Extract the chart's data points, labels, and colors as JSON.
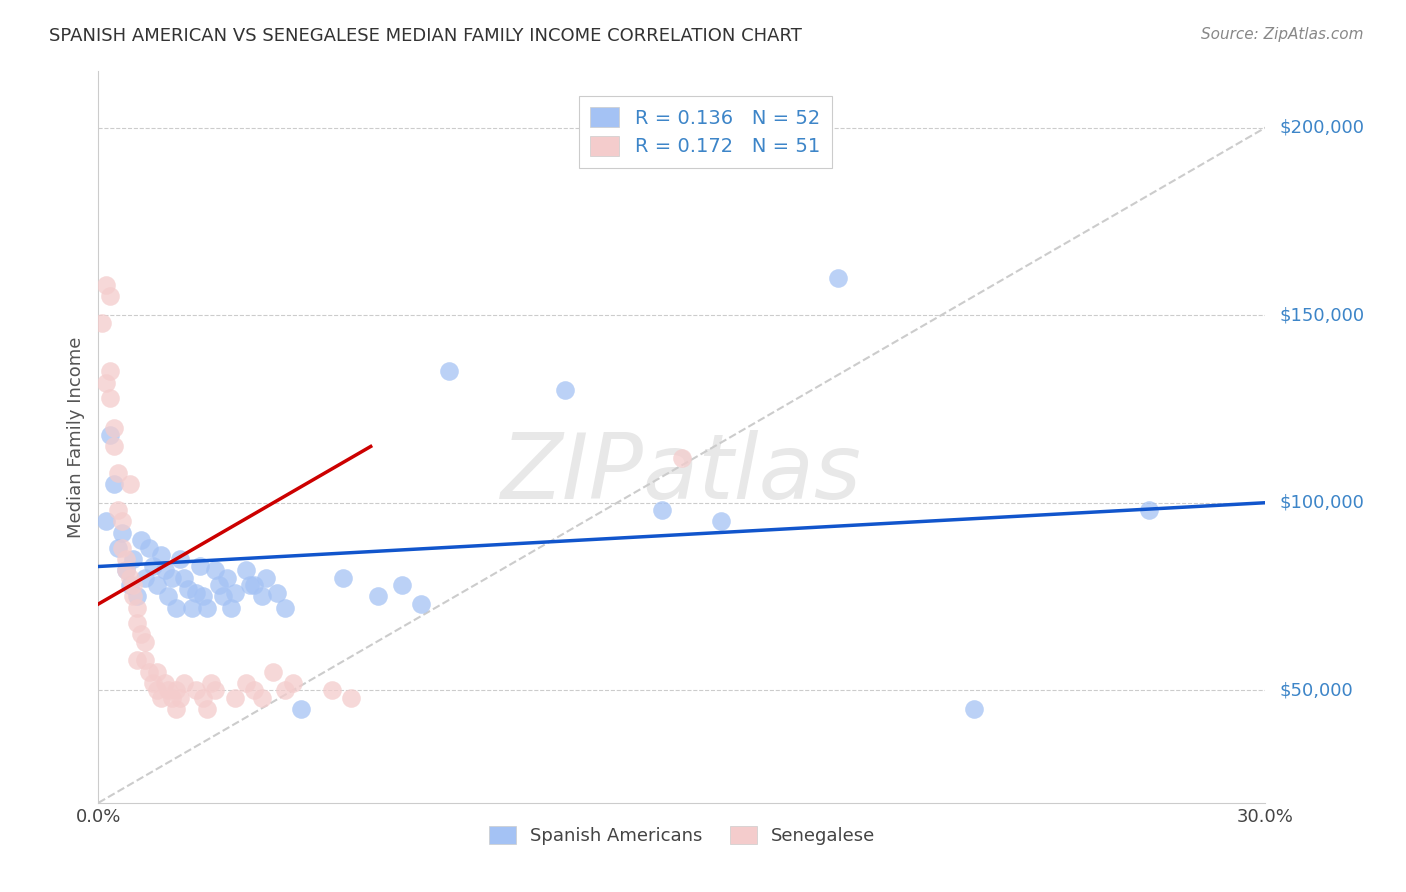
{
  "title": "SPANISH AMERICAN VS SENEGALESE MEDIAN FAMILY INCOME CORRELATION CHART",
  "source": "Source: ZipAtlas.com",
  "ylabel": "Median Family Income",
  "watermark": "ZIPatlas",
  "legend_blue_R": "R = 0.136",
  "legend_blue_N": "N = 52",
  "legend_pink_R": "R = 0.172",
  "legend_pink_N": "N = 51",
  "ytick_labels": [
    "$50,000",
    "$100,000",
    "$150,000",
    "$200,000"
  ],
  "ytick_values": [
    50000,
    100000,
    150000,
    200000
  ],
  "blue_color": "#a4c2f4",
  "pink_color": "#f4cccc",
  "blue_line_color": "#1155cc",
  "pink_line_color": "#cc0000",
  "dashed_line_color": "#cccccc",
  "blue_scatter": [
    [
      0.002,
      95000
    ],
    [
      0.003,
      118000
    ],
    [
      0.004,
      105000
    ],
    [
      0.005,
      88000
    ],
    [
      0.006,
      92000
    ],
    [
      0.007,
      82000
    ],
    [
      0.008,
      78000
    ],
    [
      0.009,
      85000
    ],
    [
      0.01,
      75000
    ],
    [
      0.011,
      90000
    ],
    [
      0.012,
      80000
    ],
    [
      0.013,
      88000
    ],
    [
      0.014,
      83000
    ],
    [
      0.015,
      78000
    ],
    [
      0.016,
      86000
    ],
    [
      0.017,
      82000
    ],
    [
      0.018,
      75000
    ],
    [
      0.019,
      80000
    ],
    [
      0.02,
      72000
    ],
    [
      0.021,
      85000
    ],
    [
      0.022,
      80000
    ],
    [
      0.023,
      77000
    ],
    [
      0.024,
      72000
    ],
    [
      0.025,
      76000
    ],
    [
      0.026,
      83000
    ],
    [
      0.027,
      75000
    ],
    [
      0.028,
      72000
    ],
    [
      0.03,
      82000
    ],
    [
      0.031,
      78000
    ],
    [
      0.032,
      75000
    ],
    [
      0.033,
      80000
    ],
    [
      0.034,
      72000
    ],
    [
      0.035,
      76000
    ],
    [
      0.038,
      82000
    ],
    [
      0.039,
      78000
    ],
    [
      0.04,
      78000
    ],
    [
      0.042,
      75000
    ],
    [
      0.043,
      80000
    ],
    [
      0.046,
      76000
    ],
    [
      0.048,
      72000
    ],
    [
      0.052,
      45000
    ],
    [
      0.063,
      80000
    ],
    [
      0.072,
      75000
    ],
    [
      0.078,
      78000
    ],
    [
      0.083,
      73000
    ],
    [
      0.09,
      135000
    ],
    [
      0.12,
      130000
    ],
    [
      0.145,
      98000
    ],
    [
      0.16,
      95000
    ],
    [
      0.19,
      160000
    ],
    [
      0.225,
      45000
    ],
    [
      0.27,
      98000
    ]
  ],
  "pink_scatter": [
    [
      0.001,
      148000
    ],
    [
      0.002,
      158000
    ],
    [
      0.002,
      132000
    ],
    [
      0.003,
      128000
    ],
    [
      0.003,
      155000
    ],
    [
      0.003,
      135000
    ],
    [
      0.004,
      120000
    ],
    [
      0.004,
      115000
    ],
    [
      0.005,
      108000
    ],
    [
      0.005,
      98000
    ],
    [
      0.006,
      95000
    ],
    [
      0.006,
      88000
    ],
    [
      0.007,
      85000
    ],
    [
      0.007,
      82000
    ],
    [
      0.008,
      105000
    ],
    [
      0.008,
      80000
    ],
    [
      0.009,
      78000
    ],
    [
      0.009,
      75000
    ],
    [
      0.01,
      72000
    ],
    [
      0.01,
      68000
    ],
    [
      0.01,
      58000
    ],
    [
      0.011,
      65000
    ],
    [
      0.012,
      63000
    ],
    [
      0.012,
      58000
    ],
    [
      0.013,
      55000
    ],
    [
      0.014,
      52000
    ],
    [
      0.015,
      50000
    ],
    [
      0.015,
      55000
    ],
    [
      0.016,
      48000
    ],
    [
      0.017,
      52000
    ],
    [
      0.018,
      50000
    ],
    [
      0.019,
      48000
    ],
    [
      0.02,
      45000
    ],
    [
      0.02,
      50000
    ],
    [
      0.021,
      48000
    ],
    [
      0.022,
      52000
    ],
    [
      0.025,
      50000
    ],
    [
      0.027,
      48000
    ],
    [
      0.028,
      45000
    ],
    [
      0.029,
      52000
    ],
    [
      0.03,
      50000
    ],
    [
      0.035,
      48000
    ],
    [
      0.038,
      52000
    ],
    [
      0.04,
      50000
    ],
    [
      0.042,
      48000
    ],
    [
      0.045,
      55000
    ],
    [
      0.048,
      50000
    ],
    [
      0.05,
      52000
    ],
    [
      0.06,
      50000
    ],
    [
      0.065,
      48000
    ],
    [
      0.15,
      112000
    ]
  ],
  "xmin": 0.0,
  "xmax": 0.3,
  "ymin": 20000,
  "ymax": 215000,
  "blue_line_x": [
    0.0,
    0.3
  ],
  "blue_line_y": [
    83000,
    100000
  ],
  "pink_line_x": [
    0.0,
    0.07
  ],
  "pink_line_y": [
    73000,
    115000
  ],
  "dashed_line_x": [
    0.0,
    0.3
  ],
  "dashed_line_y": [
    20000,
    200000
  ]
}
